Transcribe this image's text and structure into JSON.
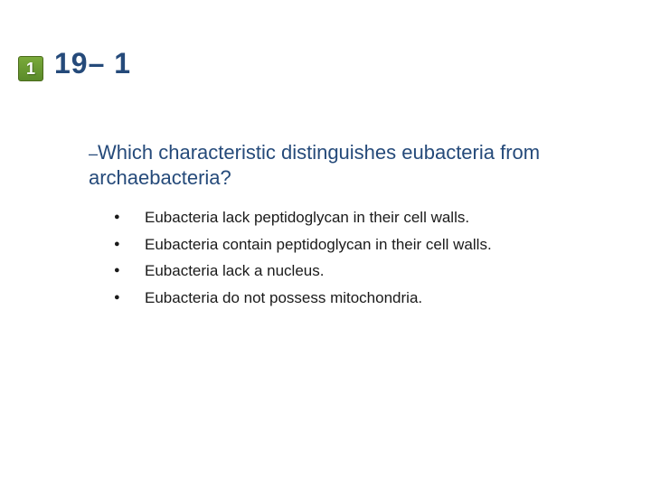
{
  "badge": {
    "number": "1",
    "bg_gradient_top": "#7aaa3a",
    "bg_gradient_bottom": "#5a8a2a",
    "border_color": "#4a6a1a",
    "text_color": "#ffffff"
  },
  "slide_number": "19– 1",
  "heading_color": "#254a7a",
  "question": {
    "prefix": "–",
    "text": "Which characteristic distinguishes eubacteria from archaebacteria?"
  },
  "options": [
    "Eubacteria lack peptidoglycan in their cell walls.",
    "Eubacteria contain peptidoglycan in their cell walls.",
    "Eubacteria lack a nucleus.",
    "Eubacteria do not possess mitochondria."
  ],
  "body_text_color": "#1a1a1a",
  "background_color": "#ffffff"
}
